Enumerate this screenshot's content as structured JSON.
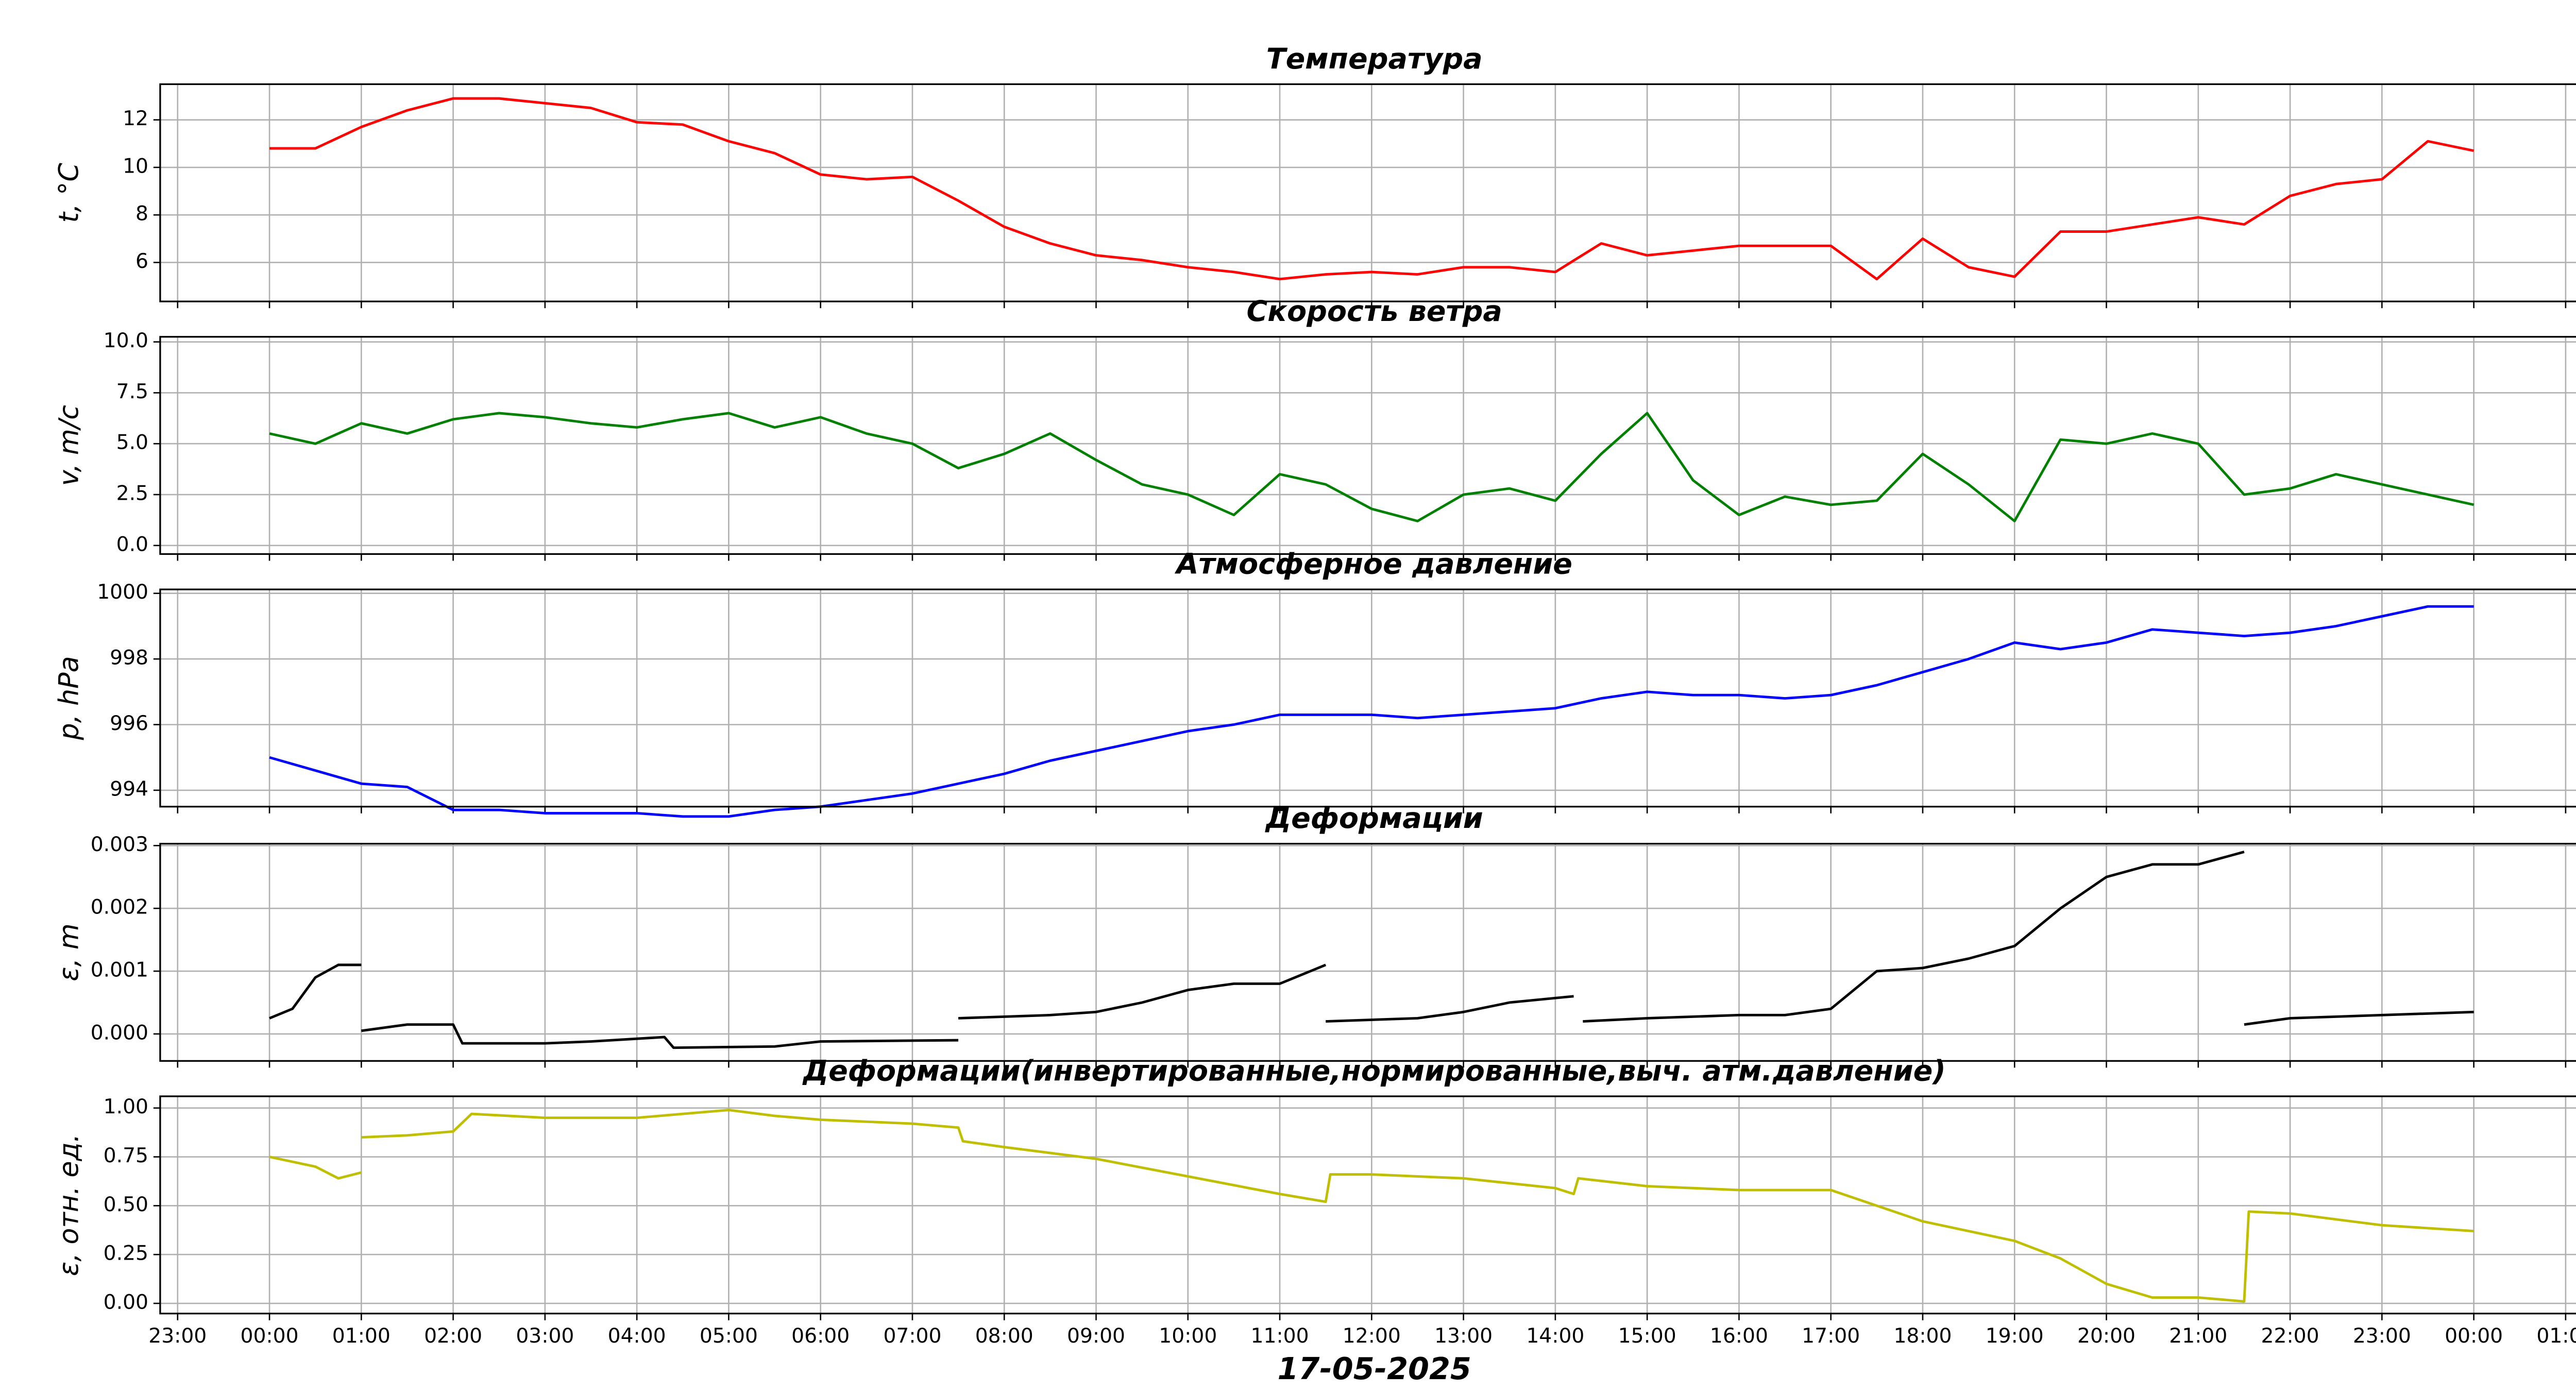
{
  "chart_data": [
    {
      "type": "line",
      "title": "Температура",
      "ylabel": "t, °C",
      "color": "#ff0000",
      "grid": true,
      "xlim": [
        -1.19,
        25.25
      ],
      "xticks": [
        -1,
        0,
        1,
        2,
        3,
        4,
        5,
        6,
        7,
        8,
        9,
        10,
        11,
        12,
        13,
        14,
        15,
        16,
        17,
        18,
        19,
        20,
        21,
        22,
        23,
        24,
        25
      ],
      "ylim": [
        4.36,
        13.5
      ],
      "yticks": [
        6,
        8,
        10,
        12
      ],
      "x": [
        0,
        0.5,
        1,
        1.5,
        2,
        2.5,
        3,
        3.5,
        4,
        4.5,
        5,
        5.5,
        6,
        6.5,
        7,
        7.5,
        8,
        8.5,
        9,
        9.5,
        10,
        10.5,
        11,
        11.5,
        12,
        12.5,
        13,
        13.5,
        14,
        14.5,
        15,
        15.5,
        16,
        16.5,
        17,
        17.5,
        18,
        18.5,
        19,
        19.5,
        20,
        20.5,
        21,
        21.5,
        22,
        22.5,
        23,
        23.5,
        24
      ],
      "values": [
        10.8,
        10.8,
        11.7,
        12.4,
        12.9,
        12.9,
        12.7,
        12.5,
        11.9,
        11.8,
        11.1,
        10.6,
        9.7,
        9.5,
        9.6,
        8.6,
        7.5,
        6.8,
        6.3,
        6.1,
        5.8,
        5.6,
        5.3,
        5.5,
        5.6,
        5.5,
        5.8,
        5.8,
        5.6,
        6.8,
        6.3,
        6.5,
        6.7,
        6.7,
        6.7,
        5.3,
        7.0,
        5.8,
        5.4,
        7.3,
        7.3,
        7.6,
        7.9,
        7.6,
        8.8,
        9.3,
        9.5,
        11.1,
        10.7
      ]
    },
    {
      "type": "line",
      "title": "Скорость ветра",
      "ylabel": "v, m/c",
      "color": "#008000",
      "grid": true,
      "xlim": [
        -1.19,
        25.25
      ],
      "xticks": [
        -1,
        0,
        1,
        2,
        3,
        4,
        5,
        6,
        7,
        8,
        9,
        10,
        11,
        12,
        13,
        14,
        15,
        16,
        17,
        18,
        19,
        20,
        21,
        22,
        23,
        24,
        25
      ],
      "ylim": [
        -0.42,
        10.25
      ],
      "yticks": [
        {
          "value": 0,
          "label": "0.0"
        },
        {
          "value": 2.5,
          "label": "2.5"
        },
        {
          "value": 5,
          "label": "5.0"
        },
        {
          "value": 7.5,
          "label": "7.5"
        },
        {
          "value": 10,
          "label": "10.0"
        }
      ],
      "x": [
        0,
        0.5,
        1,
        1.5,
        2,
        2.5,
        3,
        3.5,
        4,
        4.5,
        5,
        5.5,
        6,
        6.5,
        7,
        7.5,
        8,
        8.5,
        9,
        9.5,
        10,
        10.5,
        11,
        11.5,
        12,
        12.5,
        13,
        13.5,
        14,
        14.5,
        15,
        15.5,
        16,
        16.5,
        17,
        17.5,
        18,
        18.5,
        19,
        19.5,
        20,
        20.5,
        21,
        21.5,
        22,
        22.5,
        23,
        23.5,
        24
      ],
      "values": [
        5.5,
        5.0,
        6.0,
        5.5,
        6.2,
        6.5,
        6.3,
        6.0,
        5.8,
        6.2,
        6.5,
        5.8,
        6.3,
        5.5,
        5.0,
        3.8,
        4.5,
        5.5,
        4.2,
        3.0,
        2.5,
        1.5,
        3.5,
        3.0,
        1.8,
        1.2,
        2.5,
        2.8,
        2.2,
        4.5,
        6.5,
        3.2,
        1.5,
        2.4,
        2.0,
        2.2,
        4.5,
        3.0,
        1.2,
        5.2,
        5.0,
        5.5,
        5.0,
        2.5,
        2.8,
        3.5,
        3.0,
        2.5,
        2.0
      ]
    },
    {
      "type": "line",
      "title": "Атмосферное давление",
      "ylabel": "p, hPa",
      "color": "#0000ff",
      "grid": true,
      "xlim": [
        -1.19,
        25.25
      ],
      "xticks": [
        -1,
        0,
        1,
        2,
        3,
        4,
        5,
        6,
        7,
        8,
        9,
        10,
        11,
        12,
        13,
        14,
        15,
        16,
        17,
        18,
        19,
        20,
        21,
        22,
        23,
        24,
        25
      ],
      "ylim": [
        993.5,
        1000.12
      ],
      "yticks": [
        994,
        996,
        998,
        1000
      ],
      "x": [
        0,
        0.5,
        1,
        1.5,
        2,
        2.5,
        3,
        3.5,
        4,
        4.5,
        5,
        5.5,
        6,
        6.5,
        7,
        7.5,
        8,
        8.5,
        9,
        9.5,
        10,
        10.5,
        11,
        11.5,
        12,
        12.5,
        13,
        13.5,
        14,
        14.5,
        15,
        15.5,
        16,
        16.5,
        17,
        17.5,
        18,
        18.5,
        19,
        19.5,
        20,
        20.5,
        21,
        21.5,
        22,
        22.5,
        23,
        23.5,
        24
      ],
      "values": [
        995.0,
        994.6,
        994.2,
        994.1,
        993.4,
        993.4,
        993.3,
        993.3,
        993.3,
        993.2,
        993.2,
        993.4,
        993.5,
        993.7,
        993.9,
        994.2,
        994.5,
        994.9,
        995.2,
        995.5,
        995.8,
        996.0,
        996.3,
        996.3,
        996.3,
        996.2,
        996.3,
        996.4,
        996.5,
        996.8,
        997.0,
        996.9,
        996.9,
        996.8,
        996.9,
        997.2,
        997.6,
        998.0,
        998.5,
        998.3,
        998.5,
        998.9,
        998.8,
        998.7,
        998.8,
        999.0,
        999.3,
        999.6,
        999.6
      ]
    },
    {
      "type": "line",
      "title": "Деформации",
      "ylabel": "ε, m",
      "color": "#000000",
      "grid": true,
      "xlim": [
        -1.19,
        25.25
      ],
      "xticks": [
        -1,
        0,
        1,
        2,
        3,
        4,
        5,
        6,
        7,
        8,
        9,
        10,
        11,
        12,
        13,
        14,
        15,
        16,
        17,
        18,
        19,
        20,
        21,
        22,
        23,
        24,
        25
      ],
      "ylim": [
        -0.00043,
        0.00303
      ],
      "yticks": [
        {
          "value": 0,
          "label": "0.000"
        },
        {
          "value": 0.001,
          "label": "0.001"
        },
        {
          "value": 0.002,
          "label": "0.002"
        },
        {
          "value": 0.003,
          "label": "0.003"
        }
      ],
      "x": [
        0,
        0.25,
        0.5,
        0.75,
        1.0,
        1.0,
        1.0,
        1.5,
        2.0,
        2.1,
        3,
        3.5,
        4.3,
        4.4,
        5.5,
        6.0,
        7.5,
        7.5,
        7.5,
        8.5,
        9.0,
        9.5,
        10,
        10.5,
        11,
        11.5,
        11.5,
        11.5,
        12.5,
        13,
        13.5,
        14.2,
        14.25,
        14.3,
        15,
        16,
        16.5,
        17,
        17.5,
        18,
        18.5,
        19,
        19.5,
        20,
        20.5,
        21,
        21.5,
        21.5,
        21.5,
        22,
        23,
        24
      ],
      "values": [
        0.00025,
        0.0004,
        0.0009,
        0.0011,
        0.0011,
        null,
        5e-05,
        0.00015,
        0.00015,
        -0.00015,
        -0.00015,
        -0.00012,
        -5e-05,
        -0.00022,
        -0.0002,
        -0.00012,
        -0.0001,
        null,
        0.00025,
        0.0003,
        0.00035,
        0.0005,
        0.0007,
        0.0008,
        0.0008,
        0.0011,
        null,
        0.0002,
        0.00025,
        0.00035,
        0.0005,
        0.0006,
        null,
        0.0002,
        0.00025,
        0.0003,
        0.0003,
        0.0004,
        0.001,
        0.00105,
        0.0012,
        0.0014,
        0.002,
        0.0025,
        0.0027,
        0.0027,
        0.0029,
        null,
        0.00015,
        0.00025,
        0.0003,
        0.00035
      ]
    },
    {
      "type": "line",
      "title": "Деформации(инвертированные,нормированные,выч. атм.давление)",
      "ylabel": "ε, отн. ед.",
      "xlabel": "17-05-2025",
      "color": "#bfbf00",
      "grid": true,
      "xlim": [
        -1.19,
        25.25
      ],
      "xticks": [
        {
          "value": -1,
          "label": "23:00"
        },
        {
          "value": 0,
          "label": "00:00"
        },
        {
          "value": 1,
          "label": "01:00"
        },
        {
          "value": 2,
          "label": "02:00"
        },
        {
          "value": 3,
          "label": "03:00"
        },
        {
          "value": 4,
          "label": "04:00"
        },
        {
          "value": 5,
          "label": "05:00"
        },
        {
          "value": 6,
          "label": "06:00"
        },
        {
          "value": 7,
          "label": "07:00"
        },
        {
          "value": 8,
          "label": "08:00"
        },
        {
          "value": 9,
          "label": "09:00"
        },
        {
          "value": 10,
          "label": "10:00"
        },
        {
          "value": 11,
          "label": "11:00"
        },
        {
          "value": 12,
          "label": "12:00"
        },
        {
          "value": 13,
          "label": "13:00"
        },
        {
          "value": 14,
          "label": "14:00"
        },
        {
          "value": 15,
          "label": "15:00"
        },
        {
          "value": 16,
          "label": "16:00"
        },
        {
          "value": 17,
          "label": "17:00"
        },
        {
          "value": 18,
          "label": "18:00"
        },
        {
          "value": 19,
          "label": "19:00"
        },
        {
          "value": 20,
          "label": "20:00"
        },
        {
          "value": 21,
          "label": "21:00"
        },
        {
          "value": 22,
          "label": "22:00"
        },
        {
          "value": 23,
          "label": "23:00"
        },
        {
          "value": 24,
          "label": "00:00"
        },
        {
          "value": 25,
          "label": "01:00"
        }
      ],
      "ylim": [
        -0.052,
        1.06
      ],
      "yticks": [
        {
          "value": 0,
          "label": "0.00"
        },
        {
          "value": 0.25,
          "label": "0.25"
        },
        {
          "value": 0.5,
          "label": "0.50"
        },
        {
          "value": 0.75,
          "label": "0.75"
        },
        {
          "value": 1,
          "label": "1.00"
        }
      ],
      "x": [
        0,
        0.5,
        0.75,
        1.0,
        1.0,
        1.0,
        1.5,
        2.0,
        2.2,
        3,
        4,
        5,
        5.5,
        6,
        7,
        7.5,
        7.55,
        8,
        9,
        10,
        11,
        11.5,
        11.55,
        12,
        13,
        14,
        14.2,
        14.25,
        15,
        16,
        17,
        17.5,
        18,
        19,
        19.5,
        20,
        20.5,
        21,
        21.5,
        21.55,
        22,
        23,
        24
      ],
      "values": [
        0.75,
        0.7,
        0.64,
        0.67,
        null,
        0.85,
        0.86,
        0.88,
        0.97,
        0.95,
        0.95,
        0.99,
        0.96,
        0.94,
        0.92,
        0.9,
        0.83,
        0.8,
        0.74,
        0.65,
        0.56,
        0.52,
        0.66,
        0.66,
        0.64,
        0.59,
        0.56,
        0.64,
        0.6,
        0.58,
        0.58,
        0.5,
        0.42,
        0.32,
        0.23,
        0.1,
        0.03,
        0.03,
        0.01,
        0.47,
        0.46,
        0.4,
        0.37
      ]
    }
  ]
}
